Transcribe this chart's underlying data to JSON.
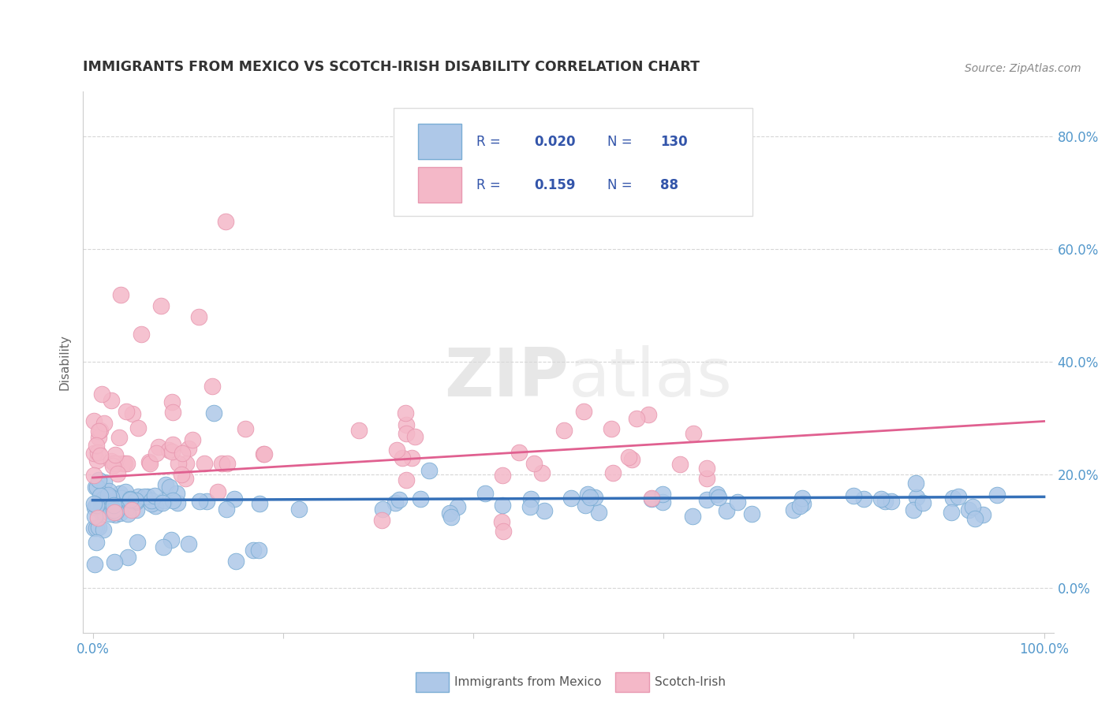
{
  "title": "IMMIGRANTS FROM MEXICO VS SCOTCH-IRISH DISABILITY CORRELATION CHART",
  "source_text": "Source: ZipAtlas.com",
  "ylabel": "Disability",
  "watermark": "ZIPatlas",
  "xlim": [
    -1,
    101
  ],
  "ylim": [
    -8,
    88
  ],
  "xticks": [
    0,
    20,
    40,
    60,
    80,
    100
  ],
  "xticklabels": [
    "0.0%",
    "",
    "",
    "",
    "",
    "100.0%"
  ],
  "ytick_values": [
    0,
    20,
    40,
    60,
    80
  ],
  "yticklabels_right": [
    "0.0%",
    "20.0%",
    "40.0%",
    "60.0%",
    "80.0%"
  ],
  "legend_R1": "0.020",
  "legend_N1": "130",
  "legend_R2": "0.159",
  "legend_N2": "88",
  "color_blue_fill": "#aec8e8",
  "color_blue_edge": "#7aadd4",
  "color_blue_line": "#3570b8",
  "color_pink_fill": "#f4b8c8",
  "color_pink_edge": "#e898b0",
  "color_pink_line": "#e06090",
  "grid_color": "#cccccc",
  "title_color": "#333333",
  "axis_label_color": "#666666",
  "tick_label_color": "#5599cc",
  "source_color": "#888888",
  "legend_text_color": "#3355aa",
  "background_color": "#ffffff",
  "trendline_blue_x0": 0,
  "trendline_blue_x1": 100,
  "trendline_blue_y0": 15.5,
  "trendline_blue_y1": 16.1,
  "trendline_pink_x0": 0,
  "trendline_pink_x1": 100,
  "trendline_pink_y0": 19.5,
  "trendline_pink_y1": 29.5
}
